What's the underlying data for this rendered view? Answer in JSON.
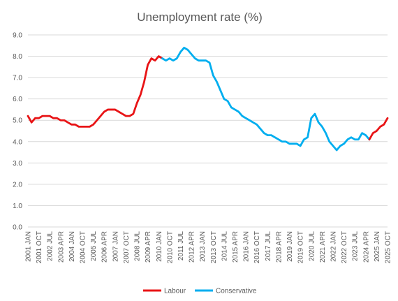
{
  "chart_data": {
    "type": "line",
    "title": "Unemployment rate (%)",
    "xlabel": "",
    "ylabel": "",
    "ylim": [
      0,
      9
    ],
    "yticks": [
      "0.0",
      "1.0",
      "2.0",
      "3.0",
      "4.0",
      "5.0",
      "6.0",
      "7.0",
      "8.0",
      "9.0"
    ],
    "xticks": [
      "2001 JAN",
      "2001 OCT",
      "2002 JUL",
      "2003 APR",
      "2004 JAN",
      "2004 OCT",
      "2005 JUL",
      "2006 APR",
      "2007 JAN",
      "2007 OCT",
      "2008 JUL",
      "2009 APR",
      "2010 JAN",
      "2010 OCT",
      "2011 JUL",
      "2012 APR",
      "2013 JAN",
      "2013 OCT",
      "2014 JUL",
      "2015 APR",
      "2016 JAN",
      "2016 OCT",
      "2017 JUL",
      "2018 APR",
      "2019 JAN",
      "2019 OCT",
      "2020 JUL",
      "2021 APR",
      "2022 JAN",
      "2022 OCT",
      "2023 JUL",
      "2024 APR",
      "2025 JAN",
      "2025 OCT"
    ],
    "grid": true,
    "legend_position": "bottom",
    "series": [
      {
        "name": "Labour",
        "color": "#e81416",
        "points": [
          [
            "2001-01",
            5.2
          ],
          [
            "2001-04",
            4.9
          ],
          [
            "2001-07",
            5.1
          ],
          [
            "2001-10",
            5.1
          ],
          [
            "2002-01",
            5.2
          ],
          [
            "2002-04",
            5.2
          ],
          [
            "2002-07",
            5.2
          ],
          [
            "2002-10",
            5.1
          ],
          [
            "2003-01",
            5.1
          ],
          [
            "2003-04",
            5.0
          ],
          [
            "2003-07",
            5.0
          ],
          [
            "2003-10",
            4.9
          ],
          [
            "2004-01",
            4.8
          ],
          [
            "2004-04",
            4.8
          ],
          [
            "2004-07",
            4.7
          ],
          [
            "2004-10",
            4.7
          ],
          [
            "2005-01",
            4.7
          ],
          [
            "2005-04",
            4.7
          ],
          [
            "2005-07",
            4.8
          ],
          [
            "2005-10",
            5.0
          ],
          [
            "2006-01",
            5.2
          ],
          [
            "2006-04",
            5.4
          ],
          [
            "2006-07",
            5.5
          ],
          [
            "2006-10",
            5.5
          ],
          [
            "2007-01",
            5.5
          ],
          [
            "2007-04",
            5.4
          ],
          [
            "2007-07",
            5.3
          ],
          [
            "2007-10",
            5.2
          ],
          [
            "2008-01",
            5.2
          ],
          [
            "2008-04",
            5.3
          ],
          [
            "2008-07",
            5.8
          ],
          [
            "2008-10",
            6.2
          ],
          [
            "2009-01",
            6.8
          ],
          [
            "2009-04",
            7.6
          ],
          [
            "2009-07",
            7.9
          ],
          [
            "2009-10",
            7.8
          ],
          [
            "2010-01",
            8.0
          ],
          [
            "2010-04",
            7.9
          ]
        ]
      },
      {
        "name": "Conservative",
        "color": "#00aeef",
        "points": [
          [
            "2010-04",
            7.9
          ],
          [
            "2010-07",
            7.8
          ],
          [
            "2010-10",
            7.9
          ],
          [
            "2011-01",
            7.8
          ],
          [
            "2011-04",
            7.9
          ],
          [
            "2011-07",
            8.2
          ],
          [
            "2011-10",
            8.4
          ],
          [
            "2012-01",
            8.3
          ],
          [
            "2012-04",
            8.1
          ],
          [
            "2012-07",
            7.9
          ],
          [
            "2012-10",
            7.8
          ],
          [
            "2013-01",
            7.8
          ],
          [
            "2013-04",
            7.8
          ],
          [
            "2013-07",
            7.7
          ],
          [
            "2013-10",
            7.1
          ],
          [
            "2014-01",
            6.8
          ],
          [
            "2014-04",
            6.4
          ],
          [
            "2014-07",
            6.0
          ],
          [
            "2014-10",
            5.9
          ],
          [
            "2015-01",
            5.6
          ],
          [
            "2015-04",
            5.5
          ],
          [
            "2015-07",
            5.4
          ],
          [
            "2015-10",
            5.2
          ],
          [
            "2016-01",
            5.1
          ],
          [
            "2016-04",
            5.0
          ],
          [
            "2016-07",
            4.9
          ],
          [
            "2016-10",
            4.8
          ],
          [
            "2017-01",
            4.6
          ],
          [
            "2017-04",
            4.4
          ],
          [
            "2017-07",
            4.3
          ],
          [
            "2017-10",
            4.3
          ],
          [
            "2018-01",
            4.2
          ],
          [
            "2018-04",
            4.1
          ],
          [
            "2018-07",
            4.0
          ],
          [
            "2018-10",
            4.0
          ],
          [
            "2019-01",
            3.9
          ],
          [
            "2019-04",
            3.9
          ],
          [
            "2019-07",
            3.9
          ],
          [
            "2019-10",
            3.8
          ],
          [
            "2020-01",
            4.1
          ],
          [
            "2020-04",
            4.2
          ],
          [
            "2020-07",
            5.1
          ],
          [
            "2020-10",
            5.3
          ],
          [
            "2021-01",
            4.9
          ],
          [
            "2021-04",
            4.7
          ],
          [
            "2021-07",
            4.4
          ],
          [
            "2021-10",
            4.0
          ],
          [
            "2022-01",
            3.8
          ],
          [
            "2022-04",
            3.6
          ],
          [
            "2022-07",
            3.8
          ],
          [
            "2022-10",
            3.9
          ],
          [
            "2023-01",
            4.1
          ],
          [
            "2023-04",
            4.2
          ],
          [
            "2023-07",
            4.1
          ],
          [
            "2023-10",
            4.1
          ],
          [
            "2024-01",
            4.4
          ],
          [
            "2024-04",
            4.3
          ],
          [
            "2024-07",
            4.1
          ]
        ]
      },
      {
        "name": "Labour",
        "color": "#e81416",
        "points": [
          [
            "2024-07",
            4.1
          ],
          [
            "2024-10",
            4.4
          ],
          [
            "2025-01",
            4.5
          ],
          [
            "2025-04",
            4.7
          ],
          [
            "2025-07",
            4.8
          ],
          [
            "2025-10",
            5.1
          ]
        ]
      }
    ],
    "legend": [
      {
        "name": "Labour",
        "color": "#e81416"
      },
      {
        "name": "Conservative",
        "color": "#00aeef"
      }
    ]
  }
}
